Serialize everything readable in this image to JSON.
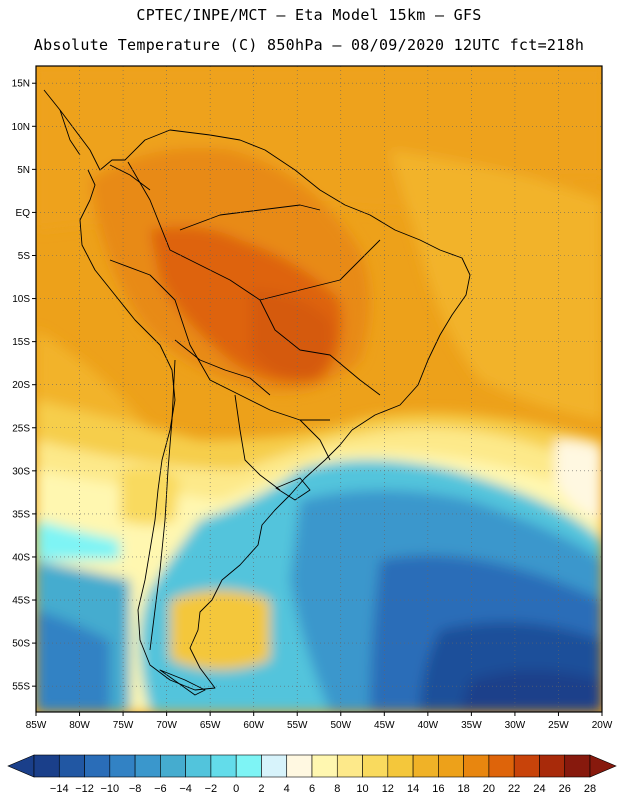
{
  "header": {
    "line1": "CPTEC/INPE/MCT –  Eta Model 15km – GFS",
    "line2": "Absolute Temperature (C) 850hPa – 08/09/2020 12UTC fct=218h"
  },
  "map": {
    "lon_range": [
      -85,
      -20
    ],
    "lat_range": [
      -58,
      17
    ],
    "lat_ticks": [
      {
        "v": 15,
        "label": "15N"
      },
      {
        "v": 10,
        "label": "10N"
      },
      {
        "v": 5,
        "label": "5N"
      },
      {
        "v": 0,
        "label": "EQ"
      },
      {
        "v": -5,
        "label": "5S"
      },
      {
        "v": -10,
        "label": "10S"
      },
      {
        "v": -15,
        "label": "15S"
      },
      {
        "v": -20,
        "label": "20S"
      },
      {
        "v": -25,
        "label": "25S"
      },
      {
        "v": -30,
        "label": "30S"
      },
      {
        "v": -35,
        "label": "35S"
      },
      {
        "v": -40,
        "label": "40S"
      },
      {
        "v": -45,
        "label": "45S"
      },
      {
        "v": -50,
        "label": "50S"
      },
      {
        "v": -55,
        "label": "55S"
      }
    ],
    "lon_ticks": [
      {
        "v": -85,
        "label": "85W"
      },
      {
        "v": -80,
        "label": "80W"
      },
      {
        "v": -75,
        "label": "75W"
      },
      {
        "v": -70,
        "label": "70W"
      },
      {
        "v": -65,
        "label": "65W"
      },
      {
        "v": -60,
        "label": "60W"
      },
      {
        "v": -55,
        "label": "55W"
      },
      {
        "v": -50,
        "label": "50W"
      },
      {
        "v": -45,
        "label": "45W"
      },
      {
        "v": -40,
        "label": "40W"
      },
      {
        "v": -35,
        "label": "35W"
      },
      {
        "v": -30,
        "label": "30W"
      },
      {
        "v": -25,
        "label": "25W"
      },
      {
        "v": -20,
        "label": "20W"
      }
    ],
    "grid": true
  },
  "colorbar": {
    "labels": [
      "-14",
      "-12",
      "-10",
      "-8",
      "-6",
      "-4",
      "-2",
      "0",
      "2",
      "4",
      "6",
      "8",
      "10",
      "12",
      "14",
      "16",
      "18",
      "20",
      "22",
      "24",
      "26",
      "28"
    ],
    "colors": [
      "#1a3f8a",
      "#2157a3",
      "#2a6db8",
      "#3282c4",
      "#3a97cc",
      "#45accf",
      "#52c4dc",
      "#63dcea",
      "#7ef4f5",
      "#d7f3fb",
      "#fff8e1",
      "#fff7b0",
      "#fde98a",
      "#f9da5e",
      "#f4c73b",
      "#f0b227",
      "#eda11a",
      "#e8860f",
      "#de640a",
      "#c8430a",
      "#a82a0a",
      "#87190d"
    ],
    "under_color": "#1a3f8a",
    "over_color": "#87190d"
  }
}
